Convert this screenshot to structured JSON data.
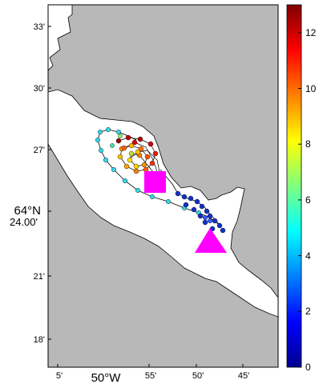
{
  "map": {
    "lat_ticks": [
      "33'",
      "30'",
      "27'",
      "24.00'",
      "21'",
      "18'"
    ],
    "lat_degree_label": "64°N",
    "lon_ticks": [
      "5'",
      "55'",
      "50'",
      "45'"
    ],
    "lon_degree_label": "50°W",
    "colors": {
      "land": "#b8b8b8",
      "water": "#ffffff",
      "square_marker": "#ff00ff",
      "triangle_marker": "#ff00ff"
    },
    "markers": [
      {
        "type": "square",
        "color": "#ff00ff"
      },
      {
        "type": "triangle",
        "color": "#ff00ff"
      }
    ]
  },
  "colorbar": {
    "min": 0,
    "max": 13,
    "ticks": [
      "0",
      "2",
      "4",
      "6",
      "8",
      "10",
      "12"
    ],
    "colormap": "jet"
  }
}
